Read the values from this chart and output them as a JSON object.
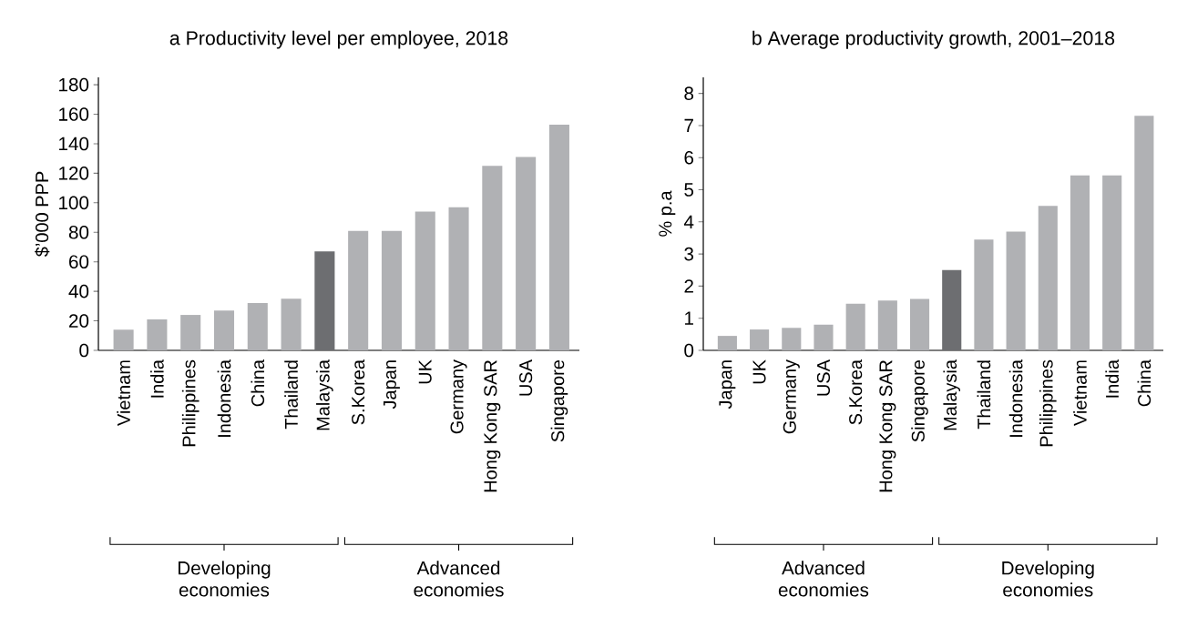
{
  "chart_data": [
    {
      "type": "bar",
      "title": "a   Productivity level per employee, 2018",
      "ylabel": "$’000 PPP",
      "categories": [
        "Vietnam",
        "India",
        "Philippines",
        "Indonesia",
        "China",
        "Thailand",
        "Malaysia",
        "S.Korea",
        "Japan",
        "UK",
        "Germany",
        "Hong Kong SAR",
        "USA",
        "Singapore"
      ],
      "values": [
        14,
        21,
        24,
        27,
        32,
        35,
        67,
        81,
        81,
        94,
        97,
        125,
        131,
        153
      ],
      "colors": [
        "#b0b1b4",
        "#b0b1b4",
        "#b0b1b4",
        "#b0b1b4",
        "#b0b1b4",
        "#b0b1b4",
        "#6d6e71",
        "#b0b1b4",
        "#b0b1b4",
        "#b0b1b4",
        "#b0b1b4",
        "#b0b1b4",
        "#b0b1b4",
        "#b0b1b4"
      ],
      "ylim": [
        0,
        185
      ],
      "yticks": [
        0,
        20,
        40,
        60,
        80,
        100,
        120,
        140,
        160,
        180
      ],
      "annotations": [
        "Developing economies",
        "Advanced economies"
      ]
    },
    {
      "type": "bar",
      "title": "b   Average productivity growth, 2001–2018",
      "ylabel": "% p.a",
      "categories": [
        "Japan",
        "UK",
        "Germany",
        "USA",
        "S.Korea",
        "Hong Kong SAR",
        "Singapore",
        "Malaysia",
        "Thailand",
        "Indonesia",
        "Philippines",
        "Vietnam",
        "India",
        "China"
      ],
      "values": [
        0.45,
        0.65,
        0.7,
        0.8,
        1.45,
        1.55,
        1.6,
        2.5,
        3.45,
        3.7,
        4.5,
        5.45,
        5.45,
        7.3
      ],
      "colors": [
        "#b0b1b4",
        "#b0b1b4",
        "#b0b1b4",
        "#b0b1b4",
        "#b0b1b4",
        "#b0b1b4",
        "#b0b1b4",
        "#6d6e71",
        "#b0b1b4",
        "#b0b1b4",
        "#b0b1b4",
        "#b0b1b4",
        "#b0b1b4",
        "#b0b1b4"
      ],
      "ylim": [
        0,
        8.5
      ],
      "yticks": [
        0,
        1,
        2,
        3,
        4,
        5,
        6,
        7,
        8
      ],
      "annotations": [
        "Advanced economies",
        "Developing economies"
      ]
    }
  ]
}
